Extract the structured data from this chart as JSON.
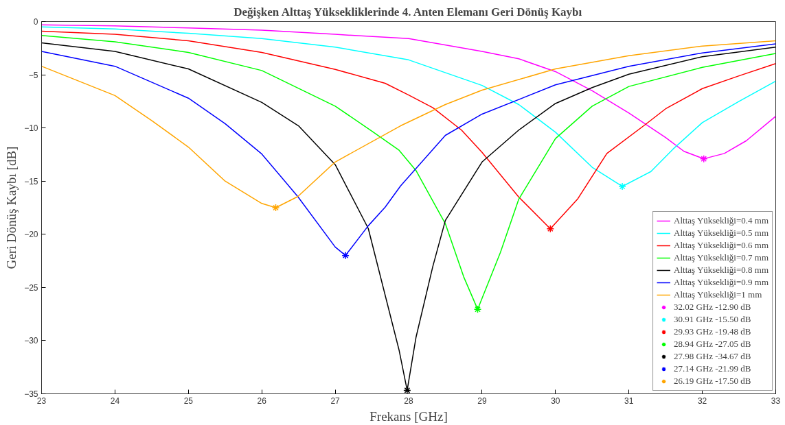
{
  "chart_data": {
    "type": "line",
    "title": "Değişken Alttaş Yüksekliklerinde 4. Anten Elemanı Geri Dönüş Kaybı",
    "xlabel": "Frekans [GHz]",
    "ylabel": "Geri Dönüş Kaybı [dB]",
    "xlim": [
      23,
      33
    ],
    "ylim": [
      -35,
      0
    ],
    "xticks": [
      23,
      24,
      25,
      26,
      27,
      28,
      29,
      30,
      31,
      32,
      33
    ],
    "yticks": [
      -35,
      -30,
      -25,
      -20,
      -15,
      -10,
      -5,
      0
    ],
    "grid": false,
    "legend": "bottom right",
    "line_style": "solid",
    "series": [
      {
        "name": "Alttaş Yüksekliği=0.4 mm",
        "color": "#ff00ff",
        "x": [
          23,
          24,
          25,
          26,
          27,
          28,
          29,
          29.5,
          30,
          30.5,
          31,
          31.5,
          31.75,
          32.02,
          32.3,
          32.6,
          33
        ],
        "values": [
          -0.3,
          -0.4,
          -0.6,
          -0.8,
          -1.2,
          -1.6,
          -2.8,
          -3.5,
          -4.7,
          -6.5,
          -8.6,
          -10.9,
          -12.2,
          -12.9,
          -12.4,
          -11.2,
          -8.9
        ]
      },
      {
        "name": "Alttaş Yüksekliği=0.5 mm",
        "color": "#00ffff",
        "x": [
          23,
          24,
          25,
          26,
          27,
          28,
          29,
          29.5,
          30,
          30.5,
          30.91,
          31.3,
          31.6,
          32,
          32.5,
          33
        ],
        "values": [
          -0.5,
          -0.7,
          -1.1,
          -1.6,
          -2.4,
          -3.6,
          -6.0,
          -7.8,
          -10.4,
          -13.7,
          -15.5,
          -14.1,
          -12.0,
          -9.5,
          -7.5,
          -5.6
        ]
      },
      {
        "name": "Alttaş Yüksekliği=0.6 mm",
        "color": "#ff0000",
        "x": [
          23,
          24,
          25,
          26,
          27,
          27.68,
          28,
          28.33,
          28.72,
          29,
          29.5,
          29.93,
          30.3,
          30.7,
          31.22,
          31.5,
          32,
          32.5,
          33
        ],
        "values": [
          -0.9,
          -1.2,
          -1.8,
          -2.9,
          -4.5,
          -5.8,
          -6.9,
          -8.1,
          -10.2,
          -12.3,
          -16.5,
          -19.48,
          -16.7,
          -12.4,
          -9.7,
          -8.2,
          -6.3,
          -5.1,
          -3.95
        ]
      },
      {
        "name": "Alttaş Yüksekliği=0.7 mm",
        "color": "#00ff00",
        "x": [
          23,
          24,
          25,
          26,
          27,
          27.5,
          27.87,
          28.1,
          28.5,
          28.75,
          28.94,
          29.25,
          29.5,
          30,
          30.5,
          31,
          32,
          33
        ],
        "values": [
          -1.3,
          -1.9,
          -2.9,
          -4.6,
          -7.95,
          -10.3,
          -12.1,
          -14.0,
          -19.0,
          -24.0,
          -27.05,
          -21.7,
          -16.7,
          -11.0,
          -7.95,
          -6.1,
          -4.3,
          -3.0
        ]
      },
      {
        "name": "Alttaş Yüksekliği=0.8 mm",
        "color": "#000000",
        "x": [
          23,
          24,
          25,
          26,
          26.5,
          27,
          27.45,
          27.87,
          27.98,
          28.1,
          28.33,
          28.5,
          29,
          29.5,
          30,
          30.5,
          31,
          32,
          33
        ],
        "values": [
          -2.0,
          -2.8,
          -4.45,
          -7.6,
          -9.8,
          -13.45,
          -19.45,
          -30.9,
          -34.67,
          -29.7,
          -23.0,
          -18.7,
          -13.2,
          -10.2,
          -7.7,
          -6.2,
          -4.95,
          -3.3,
          -2.4
        ]
      },
      {
        "name": "Alttaş Yüksekliği=0.9 mm",
        "color": "#0000ff",
        "x": [
          23,
          24,
          25,
          25.5,
          26,
          26.49,
          27,
          27.14,
          27.45,
          27.68,
          27.89,
          28.5,
          29,
          30,
          31,
          32,
          33
        ],
        "values": [
          -2.8,
          -4.2,
          -7.2,
          -9.6,
          -12.45,
          -16.45,
          -21.2,
          -21.99,
          -19.2,
          -17.45,
          -15.45,
          -10.7,
          -8.7,
          -5.95,
          -4.2,
          -2.95,
          -2.1
        ]
      },
      {
        "name": "Alttaş Yüksekliği=1 mm",
        "color": "#ffa500",
        "x": [
          23,
          24,
          24.5,
          25,
          25.5,
          26,
          26.19,
          26.49,
          27,
          27.89,
          28.5,
          29,
          30,
          31,
          32,
          33
        ],
        "values": [
          -4.2,
          -6.95,
          -9.3,
          -11.8,
          -15.0,
          -17.1,
          -17.5,
          -16.45,
          -13.2,
          -9.8,
          -7.8,
          -6.45,
          -4.45,
          -3.2,
          -2.3,
          -1.8
        ]
      },
      {
        "name": "32.02 GHz -12.90 dB",
        "type": "scatter",
        "marker": "cross",
        "color": "#ff00ff",
        "x": [
          32.02
        ],
        "values": [
          -12.9
        ]
      },
      {
        "name": "30.91 GHz -15.50 dB",
        "type": "scatter",
        "marker": "cross",
        "color": "#00ffff",
        "x": [
          30.91
        ],
        "values": [
          -15.5
        ]
      },
      {
        "name": "29.93 GHz -19.48 dB",
        "type": "scatter",
        "marker": "cross",
        "color": "#ff0000",
        "x": [
          29.93
        ],
        "values": [
          -19.48
        ]
      },
      {
        "name": "28.94 GHz -27.05 dB",
        "type": "scatter",
        "marker": "cross",
        "color": "#00ff00",
        "x": [
          28.94
        ],
        "values": [
          -27.05
        ]
      },
      {
        "name": "27.98 GHz -34.67 dB",
        "type": "scatter",
        "marker": "cross",
        "color": "#000000",
        "x": [
          27.98
        ],
        "values": [
          -34.67
        ]
      },
      {
        "name": "27.14 GHz -21.99 dB",
        "type": "scatter",
        "marker": "cross",
        "color": "#0000ff",
        "x": [
          27.14
        ],
        "values": [
          -21.99
        ]
      },
      {
        "name": "26.19 GHz -17.50 dB",
        "type": "scatter",
        "marker": "cross",
        "color": "#ffa500",
        "x": [
          26.19
        ],
        "values": [
          -17.5
        ]
      }
    ]
  }
}
